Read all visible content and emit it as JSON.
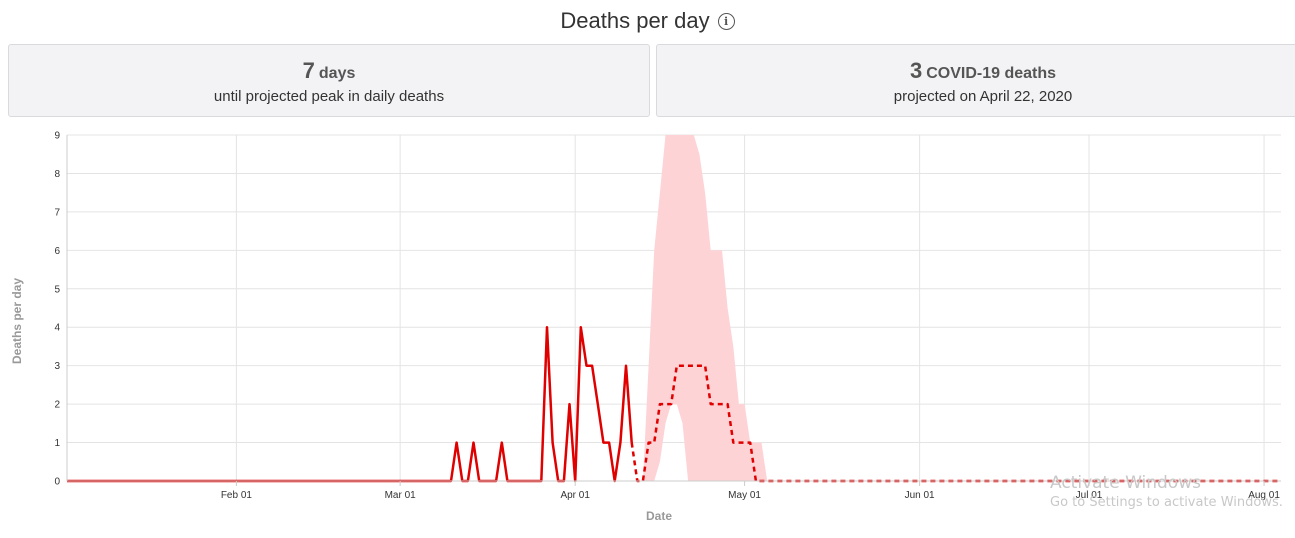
{
  "header": {
    "title": "Deaths per day",
    "info_icon": "info-circle-icon"
  },
  "cards": [
    {
      "number": "7",
      "unit": "days",
      "caption": "until projected peak in daily deaths"
    },
    {
      "number": "3",
      "unit": "COVID-19 deaths",
      "caption": "projected on April 22, 2020"
    }
  ],
  "chart_data": {
    "type": "line",
    "xlabel": "Date",
    "ylabel": "Deaths per day",
    "ylim": [
      0,
      9
    ],
    "y_ticks": [
      0,
      1,
      2,
      3,
      4,
      5,
      6,
      7,
      8,
      9
    ],
    "x_ticks": [
      {
        "label": "Feb 01",
        "date": "2020-02-01"
      },
      {
        "label": "Mar 01",
        "date": "2020-03-01"
      },
      {
        "label": "Apr 01",
        "date": "2020-04-01"
      },
      {
        "label": "May 01",
        "date": "2020-05-01"
      },
      {
        "label": "Jun 01",
        "date": "2020-06-01"
      },
      {
        "label": "Jul 01",
        "date": "2020-07-01"
      },
      {
        "label": "Aug 01",
        "date": "2020-08-01"
      }
    ],
    "xlim": [
      "2020-01-02",
      "2020-08-04"
    ],
    "grid": true,
    "colors": {
      "line": "#e00000",
      "band": "#fdd3d6",
      "grid": "#e4e4e4",
      "axis": "#cccccc"
    },
    "series": [
      {
        "style": "solid",
        "points": [
          [
            "2020-01-02",
            0
          ],
          [
            "2020-03-10",
            0
          ],
          [
            "2020-03-11",
            1
          ],
          [
            "2020-03-12",
            0
          ],
          [
            "2020-03-13",
            0
          ],
          [
            "2020-03-14",
            1
          ],
          [
            "2020-03-15",
            0
          ],
          [
            "2020-03-18",
            0
          ],
          [
            "2020-03-19",
            1
          ],
          [
            "2020-03-20",
            0
          ],
          [
            "2020-03-26",
            0
          ],
          [
            "2020-03-27",
            4
          ],
          [
            "2020-03-28",
            1
          ],
          [
            "2020-03-29",
            0
          ],
          [
            "2020-03-30",
            0
          ],
          [
            "2020-03-31",
            2
          ],
          [
            "2020-04-01",
            0
          ],
          [
            "2020-04-02",
            4
          ],
          [
            "2020-04-03",
            3
          ],
          [
            "2020-04-04",
            3
          ],
          [
            "2020-04-05",
            2
          ],
          [
            "2020-04-06",
            1
          ],
          [
            "2020-04-07",
            1
          ],
          [
            "2020-04-08",
            0
          ],
          [
            "2020-04-09",
            1
          ],
          [
            "2020-04-10",
            3
          ],
          [
            "2020-04-11",
            1
          ]
        ]
      },
      {
        "style": "dashed",
        "points": [
          [
            "2020-04-11",
            1
          ],
          [
            "2020-04-12",
            0
          ],
          [
            "2020-04-13",
            0
          ],
          [
            "2020-04-14",
            1
          ],
          [
            "2020-04-15",
            1
          ],
          [
            "2020-04-16",
            2
          ],
          [
            "2020-04-17",
            2
          ],
          [
            "2020-04-18",
            2
          ],
          [
            "2020-04-19",
            3
          ],
          [
            "2020-04-20",
            3
          ],
          [
            "2020-04-21",
            3
          ],
          [
            "2020-04-22",
            3
          ],
          [
            "2020-04-23",
            3
          ],
          [
            "2020-04-24",
            3
          ],
          [
            "2020-04-25",
            2
          ],
          [
            "2020-04-26",
            2
          ],
          [
            "2020-04-27",
            2
          ],
          [
            "2020-04-28",
            2
          ],
          [
            "2020-04-29",
            1
          ],
          [
            "2020-04-30",
            1
          ],
          [
            "2020-05-01",
            1
          ],
          [
            "2020-05-02",
            1
          ],
          [
            "2020-05-03",
            0
          ],
          [
            "2020-08-04",
            0
          ]
        ]
      }
    ],
    "band": {
      "upper": [
        [
          "2020-04-13",
          0
        ],
        [
          "2020-04-14",
          3
        ],
        [
          "2020-04-15",
          6
        ],
        [
          "2020-04-16",
          7.5
        ],
        [
          "2020-04-17",
          9
        ],
        [
          "2020-04-18",
          9
        ],
        [
          "2020-04-20",
          9
        ],
        [
          "2020-04-21",
          9
        ],
        [
          "2020-04-22",
          9
        ],
        [
          "2020-04-23",
          8.5
        ],
        [
          "2020-04-24",
          7.5
        ],
        [
          "2020-04-25",
          6
        ],
        [
          "2020-04-26",
          6
        ],
        [
          "2020-04-27",
          6
        ],
        [
          "2020-04-28",
          4.5
        ],
        [
          "2020-04-29",
          3.5
        ],
        [
          "2020-04-30",
          2
        ],
        [
          "2020-05-01",
          2
        ],
        [
          "2020-05-02",
          1
        ],
        [
          "2020-05-04",
          1
        ],
        [
          "2020-05-05",
          0
        ]
      ],
      "lower": [
        [
          "2020-05-05",
          0
        ],
        [
          "2020-04-21",
          0
        ],
        [
          "2020-04-20",
          1.5
        ],
        [
          "2020-04-19",
          2
        ],
        [
          "2020-04-18",
          2
        ],
        [
          "2020-04-17",
          1.5
        ],
        [
          "2020-04-16",
          0.5
        ],
        [
          "2020-04-15",
          0
        ],
        [
          "2020-04-13",
          0
        ]
      ]
    }
  },
  "watermark": {
    "line1": "Activate Windows",
    "line2": "Go to Settings to activate Windows."
  }
}
